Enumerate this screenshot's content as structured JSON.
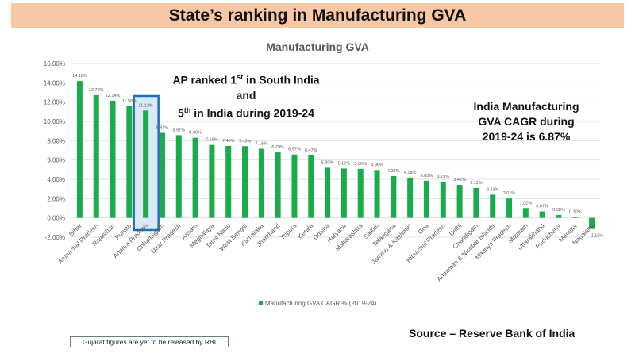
{
  "header": {
    "title": "State’s ranking in Manufacturing GVA"
  },
  "annotations": {
    "ap_line1_a": "AP ranked 1",
    "ap_line1_sup": "st",
    "ap_line1_b": " in South India and",
    "ap_line2_a": "5",
    "ap_line2_sup": "th",
    "ap_line2_b": " in India during 2019-24",
    "india_cagr": "India Manufacturing GVA CAGR during 2019-24 is 6.87%"
  },
  "footer": {
    "note": "Gujarat figures are yet to be released by RBI",
    "source": "Source – Reserve Bank of India"
  },
  "colors": {
    "bar": "#1aab4b",
    "highlight_border": "#1f6fb5",
    "highlight_fill": "#dbe9f6",
    "banner": "#f7c7a6"
  },
  "chart_data": {
    "type": "bar",
    "title": "Manufacturing GVA",
    "xlabel": "",
    "ylabel": "",
    "ylim": [
      -2,
      16
    ],
    "yticks": [
      "-2.00%",
      "0.00%",
      "2.00%",
      "4.00%",
      "6.00%",
      "8.00%",
      "10.00%",
      "12.00%",
      "14.00%",
      "16.00%"
    ],
    "grid": true,
    "legend": {
      "position": "bottom",
      "label": "Manufacturing GVA CAGR % (2019-24)"
    },
    "highlight": "Andhra Pradesh",
    "categories": [
      "Bihar",
      "Arunachal Pradesh",
      "Rajasthan",
      "Punjab",
      "Andhra Pradesh",
      "Chhattisgarh",
      "Uttar Pradesh",
      "Assam",
      "Meghalaya",
      "Tamil Nadu",
      "West Bengal",
      "Karnataka",
      "Jharkhand",
      "Tripura",
      "Kerala",
      "Odisha",
      "Haryana",
      "Maharashtra",
      "Sikkim",
      "Telangana",
      "Jammu & Kashmir*",
      "Goa",
      "Himachal Pradesh",
      "Delhi",
      "Chandigarh",
      "Andaman & Nicobar Islands",
      "Madhya Pradesh",
      "Mizoram",
      "Uttarakhand",
      "Puducherry",
      "Manipur",
      "Nagaland"
    ],
    "values": [
      14.18,
      12.72,
      12.14,
      11.58,
      11.12,
      8.81,
      8.57,
      8.3,
      7.56,
      7.45,
      7.43,
      7.16,
      6.79,
      6.57,
      6.47,
      5.2,
      5.12,
      5.08,
      4.96,
      4.33,
      4.18,
      3.85,
      3.75,
      3.42,
      3.11,
      2.41,
      2.01,
      1.02,
      0.67,
      0.3,
      0.1,
      -1.15
    ],
    "data_labels": [
      "14.18%",
      "12.72%",
      "12.14%",
      "11.58%",
      "11.12%",
      "8.81%",
      "8.57%",
      "8.30%",
      "7.56%",
      "7.45%",
      "7.43%",
      "7.16%",
      "6.79%",
      "6.57%",
      "6.47%",
      "5.20%",
      "5.12%",
      "5.08%",
      "4.96%",
      "4.33%",
      "4.18%",
      "3.85%",
      "3.75%",
      "3.42%",
      "3.11%",
      "2.41%",
      "2.01%",
      "1.02%",
      "0.67%",
      "0.30%",
      "0.10%",
      "-1.15%"
    ]
  }
}
